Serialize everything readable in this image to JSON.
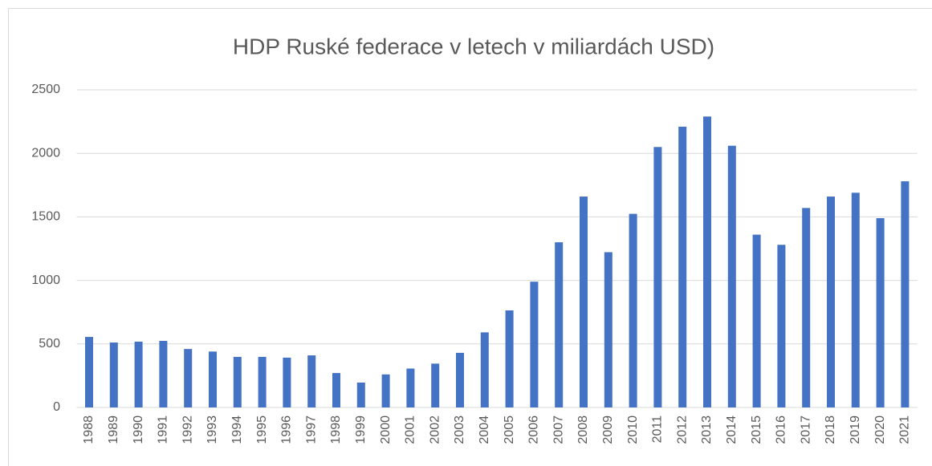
{
  "chart_data": {
    "type": "bar",
    "title": "HDP Ruské federace v letech v miliardách USD)",
    "categories": [
      "1988",
      "1989",
      "1990",
      "1991",
      "1992",
      "1993",
      "1994",
      "1995",
      "1996",
      "1997",
      "1998",
      "1999",
      "2000",
      "2001",
      "2002",
      "2003",
      "2004",
      "2005",
      "2006",
      "2007",
      "2008",
      "2009",
      "2010",
      "2011",
      "2012",
      "2013",
      "2014",
      "2015",
      "2016",
      "2017",
      "2018",
      "2019",
      "2020",
      "2021"
    ],
    "values": [
      555,
      511,
      518,
      524,
      460,
      440,
      398,
      398,
      392,
      410,
      271,
      196,
      260,
      306,
      345,
      430,
      591,
      764,
      990,
      1300,
      1660,
      1222,
      1524,
      2050,
      2210,
      2290,
      2060,
      1360,
      1280,
      1570,
      1660,
      1690,
      1490,
      1780
    ],
    "color": "#4472c4",
    "ylim": [
      0,
      2500
    ],
    "yticks": [
      0,
      500,
      1000,
      1500,
      2000,
      2500
    ],
    "grid": true
  }
}
